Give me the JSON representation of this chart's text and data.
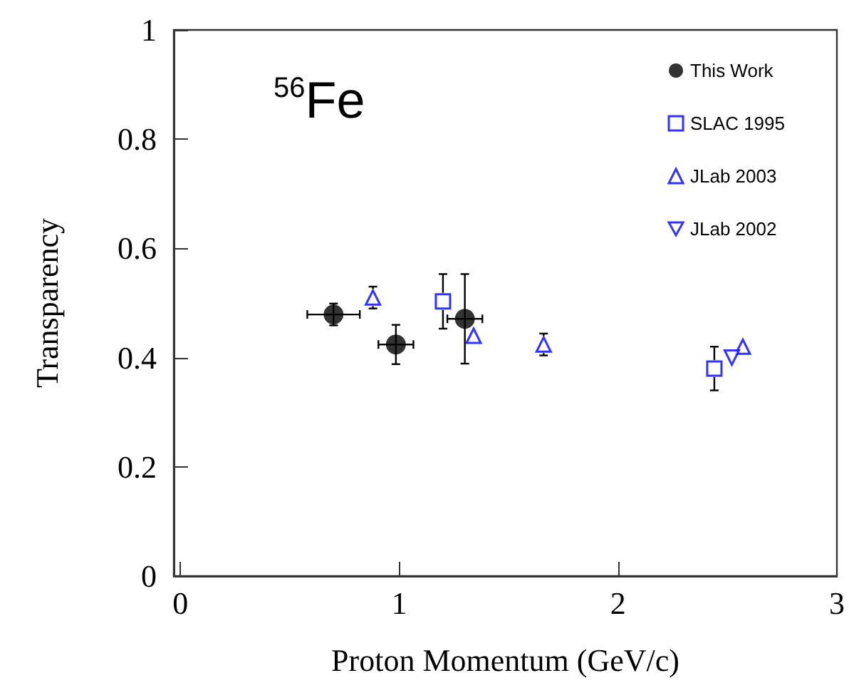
{
  "chart_data": {
    "type": "scatter",
    "xlabel": "Proton Momentum (GeV/c)",
    "ylabel": "Transparency",
    "annotations": [
      "$^{56}$Fe"
    ],
    "xlim": [
      -0.03,
      3
    ],
    "xticks": [
      0,
      1,
      2,
      3
    ],
    "ylim": [
      0,
      1
    ],
    "yticks": [
      0,
      0.2,
      0.4,
      0.6,
      0.8,
      1
    ],
    "grid": false,
    "legend": "top right",
    "series": [
      {
        "name": "This Work",
        "color": "#000000",
        "marker": "circle",
        "x": [
          0.7,
          0.985,
          1.3
        ],
        "values": [
          0.479,
          0.424,
          0.471
        ],
        "errors": [
          0.02,
          0.036,
          0.082
        ],
        "xerrors": [
          0.12,
          0.08,
          0.08
        ]
      },
      {
        "name": "SLAC 1995",
        "color": "#0000ff",
        "marker": "square",
        "x": [
          1.2,
          2.44
        ],
        "values": [
          0.503,
          0.38
        ],
        "errors": [
          0.05,
          0.04
        ]
      },
      {
        "name": "JLab 2003",
        "color": "#0000ff",
        "marker": "triangle",
        "x": [
          0.88,
          1.34,
          1.66,
          2.57
        ],
        "values": [
          0.51,
          0.44,
          0.424,
          0.42
        ],
        "errors": [
          0.02,
          null,
          0.02,
          null
        ]
      },
      {
        "name": "JLab 2002",
        "color": "#0000ff",
        "marker": "triangle-down",
        "x": [
          2.52
        ],
        "values": [
          0.4
        ]
      }
    ]
  }
}
